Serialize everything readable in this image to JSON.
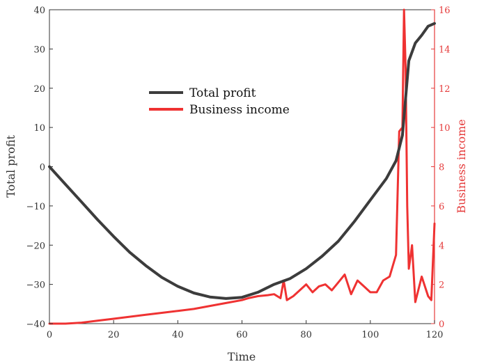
{
  "colors": {
    "profit": "#3c3c3c",
    "income": "#ef3232",
    "right_axis": "#e53a3a",
    "axis": "#333333"
  },
  "chart_data": {
    "type": "line",
    "xlabel": "Time",
    "ylabel_left": "Total profit",
    "ylabel_right": "Business income",
    "xlim": [
      0,
      120
    ],
    "ylim_left": [
      -40,
      40
    ],
    "ylim_right": [
      0,
      16
    ],
    "x_ticks": [
      "0",
      "20",
      "40",
      "60",
      "80",
      "100",
      "120"
    ],
    "y_left_ticks": [
      "40",
      "30",
      "20",
      "10",
      "0",
      "-10",
      "-20",
      "-30",
      "-40"
    ],
    "y_right_ticks": [
      "16",
      "14",
      "12",
      "10",
      "8",
      "6",
      "4",
      "2",
      "0"
    ],
    "grid": false,
    "legend_position": "upper-center",
    "series": [
      {
        "name": "Total profit",
        "axis": "left",
        "x": [
          0,
          5,
          10,
          15,
          20,
          25,
          30,
          35,
          40,
          45,
          50,
          55,
          60,
          65,
          70,
          75,
          80,
          85,
          90,
          95,
          100,
          105,
          108,
          110,
          112,
          114,
          116,
          118,
          120
        ],
        "y": [
          0,
          -4.5,
          -9,
          -13.5,
          -17.8,
          -21.8,
          -25.2,
          -28.2,
          -30.5,
          -32.2,
          -33.2,
          -33.6,
          -33.3,
          -32,
          -30,
          -28.5,
          -26,
          -22.8,
          -19,
          -14,
          -8.5,
          -3,
          1.5,
          8,
          27,
          31.5,
          33.5,
          35.8,
          36.5
        ]
      },
      {
        "name": "Business income",
        "axis": "right",
        "x": [
          0,
          5,
          10,
          15,
          20,
          25,
          30,
          35,
          40,
          45,
          50,
          55,
          60,
          62,
          65,
          68,
          70,
          72,
          73,
          74,
          76,
          78,
          80,
          82,
          84,
          86,
          88,
          90,
          92,
          94,
          96,
          98,
          100,
          102,
          104,
          106,
          108,
          109,
          110,
          110.5,
          111,
          111.5,
          112,
          113,
          114,
          116,
          118,
          119,
          120
        ],
        "y": [
          0,
          0,
          0.05,
          0.15,
          0.25,
          0.35,
          0.45,
          0.55,
          0.65,
          0.75,
          0.9,
          1.05,
          1.2,
          1.3,
          1.4,
          1.45,
          1.5,
          1.3,
          2.2,
          1.2,
          1.4,
          1.7,
          2,
          1.6,
          1.9,
          2,
          1.7,
          2.1,
          2.5,
          1.5,
          2.2,
          1.9,
          1.6,
          1.6,
          2.2,
          2.4,
          3.5,
          9.8,
          10,
          16,
          13,
          6,
          2.8,
          4,
          1.1,
          2.4,
          1.4,
          1.2,
          5.1
        ]
      }
    ]
  }
}
